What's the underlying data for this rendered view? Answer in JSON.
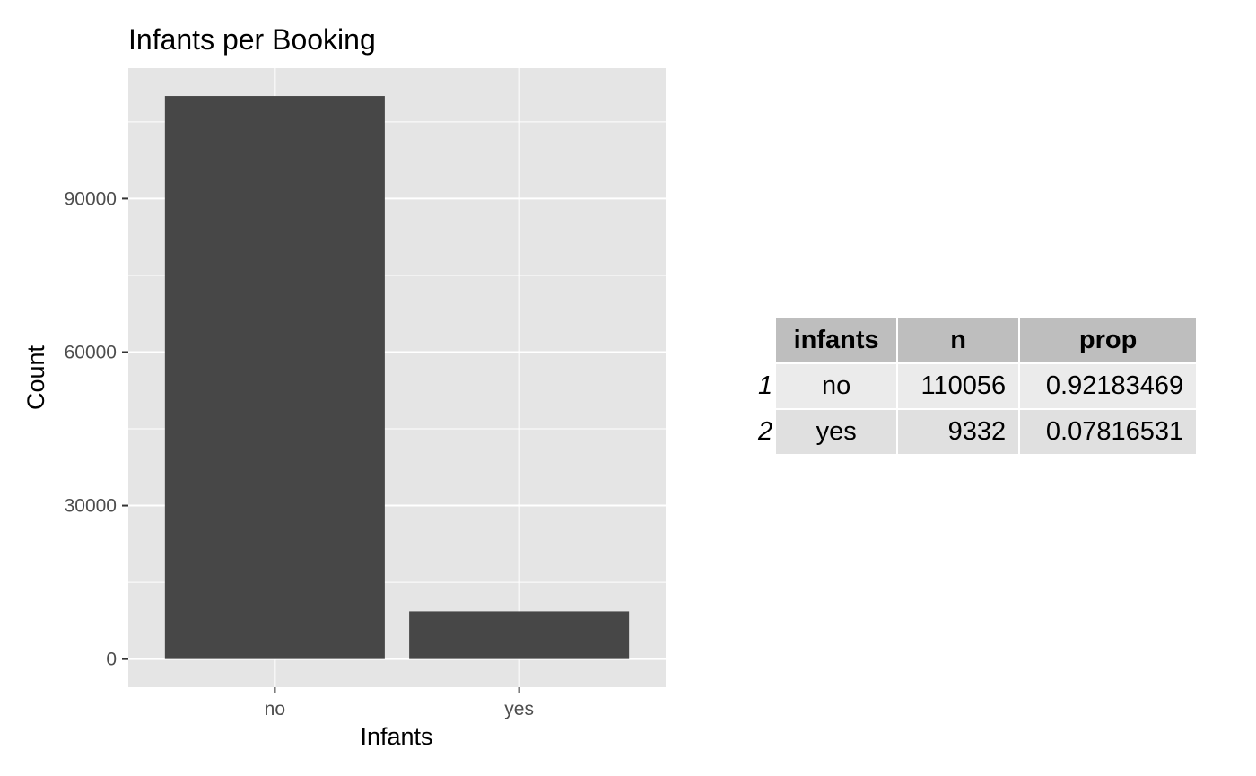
{
  "chart_data": {
    "type": "bar",
    "title": "Infants per Booking",
    "xlabel": "Infants",
    "ylabel": "Count",
    "categories": [
      "no",
      "yes"
    ],
    "values": [
      110056,
      9332
    ],
    "ylim": [
      -5500,
      115500
    ],
    "yticks": [
      0,
      30000,
      60000,
      90000
    ],
    "ytick_labels": [
      "0",
      "30000",
      "60000",
      "90000"
    ],
    "grid": true,
    "colors": {
      "bar": "#474747",
      "panel": "#e5e5e5",
      "grid_major": "#ffffff",
      "tick_text": "#4d4d4d"
    }
  },
  "table": {
    "columns": [
      "infants",
      "n",
      "prop"
    ],
    "rows": [
      {
        "rowname": "1",
        "infants": "no",
        "n": "110056",
        "prop": "0.92183469"
      },
      {
        "rowname": "2",
        "infants": "yes",
        "n": "9332",
        "prop": "0.07816531"
      }
    ],
    "header_color": "#bebebe",
    "row_colors": [
      "#ebebeb",
      "#e0e0e0"
    ]
  }
}
